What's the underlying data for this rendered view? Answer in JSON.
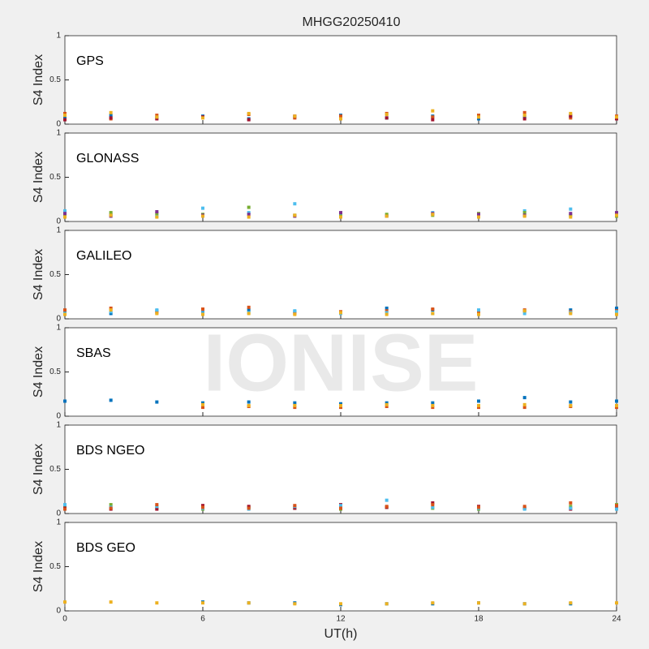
{
  "title": "MHGG20250410",
  "xlabel": "UT(h)",
  "watermark": "IONISE",
  "chart_data": [
    {
      "type": "scatter",
      "label": "GPS",
      "ylabel": "S4 Index",
      "xlim": [
        0,
        24
      ],
      "xticks": [
        0,
        6,
        12,
        18,
        24
      ],
      "ylim": [
        0,
        1
      ],
      "yticks": [
        0,
        0.5,
        1
      ],
      "x": [
        0,
        2,
        4,
        6,
        8,
        10,
        12,
        14,
        16,
        18,
        20,
        22,
        24
      ],
      "series": [
        {
          "color": "#0072BD",
          "values": [
            0.08,
            0.1,
            0.07,
            0.09,
            0.06,
            0.08,
            0.1,
            0.07,
            0.09,
            0.06,
            0.08,
            0.1,
            0.07
          ]
        },
        {
          "color": "#D95319",
          "values": [
            0.12,
            0.06,
            0.1,
            0.08,
            0.11,
            0.07,
            0.09,
            0.12,
            0.08,
            0.1,
            0.13,
            0.07,
            0.09
          ]
        },
        {
          "color": "#A2142F",
          "values": [
            0.05,
            0.07,
            0.06,
            0.08,
            0.05,
            0.09,
            0.06,
            0.07,
            0.05,
            0.08,
            0.06,
            0.09,
            0.06
          ]
        },
        {
          "color": "#EDB120",
          "values": [
            0.1,
            0.13,
            0.08,
            0.07,
            0.12,
            0.09,
            0.06,
            0.11,
            0.15,
            0.08,
            0.1,
            0.12,
            0.08
          ]
        }
      ]
    },
    {
      "type": "scatter",
      "label": "GLONASS",
      "ylabel": "S4 Index",
      "xlim": [
        0,
        24
      ],
      "xticks": [
        0,
        6,
        12,
        18,
        24
      ],
      "ylim": [
        0,
        1
      ],
      "yticks": [
        0,
        0.5,
        1
      ],
      "x": [
        0,
        2,
        4,
        6,
        8,
        10,
        12,
        14,
        16,
        18,
        20,
        22,
        24
      ],
      "series": [
        {
          "color": "#4DBEEE",
          "values": [
            0.12,
            0.08,
            0.06,
            0.15,
            0.1,
            0.2,
            0.09,
            0.07,
            0.1,
            0.06,
            0.12,
            0.14,
            0.08
          ]
        },
        {
          "color": "#77AC30",
          "values": [
            0.07,
            0.1,
            0.09,
            0.08,
            0.16,
            0.07,
            0.06,
            0.08,
            0.07,
            0.09,
            0.1,
            0.07,
            0.06
          ]
        },
        {
          "color": "#7E2F8E",
          "values": [
            0.09,
            0.06,
            0.11,
            0.07,
            0.08,
            0.06,
            0.1,
            0.06,
            0.09,
            0.08,
            0.07,
            0.09,
            0.1
          ]
        },
        {
          "color": "#EDB120",
          "values": [
            0.05,
            0.07,
            0.05,
            0.06,
            0.05,
            0.07,
            0.05,
            0.06,
            0.08,
            0.05,
            0.06,
            0.05,
            0.07
          ]
        }
      ]
    },
    {
      "type": "scatter",
      "label": "GALILEO",
      "ylabel": "S4 Index",
      "xlim": [
        0,
        24
      ],
      "xticks": [
        0,
        6,
        12,
        18,
        24
      ],
      "ylim": [
        0,
        1
      ],
      "yticks": [
        0,
        0.5,
        1
      ],
      "x": [
        0,
        2,
        4,
        6,
        8,
        10,
        12,
        14,
        16,
        18,
        20,
        22,
        24
      ],
      "series": [
        {
          "color": "#0072BD",
          "values": [
            0.08,
            0.06,
            0.09,
            0.07,
            0.1,
            0.08,
            0.07,
            0.12,
            0.1,
            0.08,
            0.09,
            0.1,
            0.12
          ]
        },
        {
          "color": "#D95319",
          "values": [
            0.1,
            0.12,
            0.07,
            0.11,
            0.13,
            0.06,
            0.08,
            0.09,
            0.11,
            0.07,
            0.1,
            0.08,
            0.09
          ]
        },
        {
          "color": "#4DBEEE",
          "values": [
            0.06,
            0.08,
            0.1,
            0.06,
            0.07,
            0.09,
            0.06,
            0.07,
            0.06,
            0.1,
            0.06,
            0.07,
            0.08
          ]
        },
        {
          "color": "#EDB120",
          "values": [
            0.05,
            0.1,
            0.06,
            0.05,
            0.06,
            0.05,
            0.07,
            0.05,
            0.06,
            0.05,
            0.09,
            0.06,
            0.05
          ]
        }
      ]
    },
    {
      "type": "scatter",
      "label": "SBAS",
      "ylabel": "S4 Index",
      "xlim": [
        0,
        24
      ],
      "xticks": [
        0,
        6,
        12,
        18,
        24
      ],
      "ylim": [
        0,
        1
      ],
      "yticks": [
        0,
        0.5,
        1
      ],
      "x": [
        0,
        2,
        4,
        6,
        8,
        10,
        12,
        14,
        16,
        18,
        20,
        22,
        24
      ],
      "series": [
        {
          "color": "#0072BD",
          "values": [
            0.17,
            0.18,
            0.16,
            0.15,
            0.16,
            0.15,
            0.14,
            0.15,
            0.15,
            0.17,
            0.21,
            0.16,
            0.17
          ]
        },
        {
          "color": "#D95319",
          "values": [
            null,
            null,
            null,
            0.1,
            0.11,
            0.1,
            0.1,
            0.11,
            0.1,
            0.1,
            0.1,
            0.11,
            0.1
          ]
        },
        {
          "color": "#EDB120",
          "values": [
            null,
            null,
            null,
            0.13,
            0.12,
            0.12,
            0.12,
            0.13,
            0.12,
            0.12,
            0.13,
            0.12,
            0.12
          ]
        }
      ]
    },
    {
      "type": "scatter",
      "label": "BDS NGEO",
      "ylabel": "S4 Index",
      "xlim": [
        0,
        24
      ],
      "xticks": [
        0,
        6,
        12,
        18,
        24
      ],
      "ylim": [
        0,
        1
      ],
      "yticks": [
        0,
        0.5,
        1
      ],
      "x": [
        0,
        2,
        4,
        6,
        8,
        10,
        12,
        14,
        16,
        18,
        20,
        22,
        24
      ],
      "series": [
        {
          "color": "#77AC30",
          "values": [
            0.08,
            0.1,
            0.06,
            0.05,
            0.07,
            0.06,
            0.05,
            0.07,
            0.06,
            0.05,
            0.06,
            0.08,
            0.1
          ]
        },
        {
          "color": "#A2142F",
          "values": [
            0.06,
            0.05,
            0.05,
            0.09,
            0.08,
            0.06,
            0.1,
            0.07,
            0.12,
            0.08,
            0.06,
            0.05,
            0.07
          ]
        },
        {
          "color": "#4DBEEE",
          "values": [
            0.1,
            0.07,
            0.08,
            0.06,
            0.05,
            0.08,
            0.09,
            0.15,
            0.07,
            0.06,
            0.05,
            0.06,
            0.05
          ]
        },
        {
          "color": "#D95319",
          "values": [
            0.05,
            0.06,
            0.1,
            0.07,
            0.06,
            0.09,
            0.06,
            0.08,
            0.1,
            0.07,
            0.08,
            0.12,
            0.09
          ]
        }
      ]
    },
    {
      "type": "scatter",
      "label": "BDS GEO",
      "ylabel": "S4 Index",
      "xlim": [
        0,
        24
      ],
      "xticks": [
        0,
        6,
        12,
        18,
        24
      ],
      "ylim": [
        0,
        1
      ],
      "yticks": [
        0,
        0.5,
        1
      ],
      "x": [
        0,
        2,
        4,
        6,
        8,
        10,
        12,
        14,
        16,
        18,
        20,
        22,
        24
      ],
      "series": [
        {
          "color": "#0072BD",
          "values": [
            null,
            null,
            null,
            0.1,
            0.09,
            0.09,
            0.07,
            0.08,
            0.08,
            0.09,
            0.08,
            0.08,
            null
          ]
        },
        {
          "color": "#EDB120",
          "values": [
            0.1,
            0.1,
            0.09,
            0.09,
            0.09,
            0.08,
            0.08,
            0.08,
            0.09,
            0.09,
            0.08,
            0.09,
            0.09
          ]
        }
      ]
    }
  ]
}
